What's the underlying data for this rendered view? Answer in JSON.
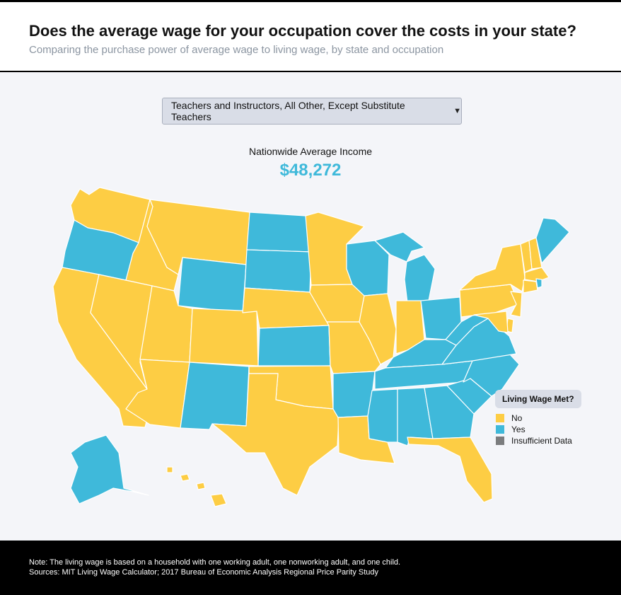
{
  "header": {
    "title": "Does the average wage for your occupation cover the costs in your state?",
    "subtitle": "Comparing the purchase power of average wage to living wage, by state and occupation"
  },
  "occupation_select": {
    "selected": "Teachers and Instructors, All Other, Except Substitute Teachers"
  },
  "nationwide": {
    "label": "Nationwide Average Income",
    "value": "$48,272"
  },
  "legend": {
    "title": "Living Wage Met?",
    "items": [
      {
        "label": "No",
        "color": "#fdcd44"
      },
      {
        "label": "Yes",
        "color": "#3fb9da"
      },
      {
        "label": "Insufficient Data",
        "color": "#7b7c7e"
      }
    ]
  },
  "colors": {
    "no": "#fdcd44",
    "yes": "#3fb9da",
    "accent": "#3fb9da"
  },
  "states": {
    "WA": "No",
    "OR": "Yes",
    "CA": "No",
    "ID": "No",
    "NV": "No",
    "MT": "No",
    "WY": "Yes",
    "UT": "No",
    "AZ": "No",
    "CO": "No",
    "NM": "Yes",
    "ND": "Yes",
    "SD": "Yes",
    "NE": "No",
    "KS": "Yes",
    "OK": "No",
    "TX": "No",
    "MN": "No",
    "IA": "No",
    "MO": "No",
    "AR": "Yes",
    "LA": "No",
    "WI": "Yes",
    "IL": "No",
    "MI": "Yes",
    "IN": "No",
    "OH": "Yes",
    "KY": "Yes",
    "TN": "Yes",
    "MS": "Yes",
    "AL": "Yes",
    "GA": "Yes",
    "FL": "No",
    "SC": "Yes",
    "NC": "Yes",
    "VA": "Yes",
    "WV": "Yes",
    "PA": "No",
    "NY": "No",
    "VT": "No",
    "NH": "No",
    "ME": "Yes",
    "MA": "No",
    "CT": "No",
    "RI": "Yes",
    "NJ": "No",
    "DE": "No",
    "MD": "No",
    "AK": "Yes",
    "HI": "No"
  },
  "footer": {
    "note": "Note: The living wage is based on a household with one working adult, one nonworking adult, and one child.",
    "sources": "Sources: MIT Living Wage Calculator; 2017 Bureau of Economic Analysis Regional Price Parity Study"
  }
}
